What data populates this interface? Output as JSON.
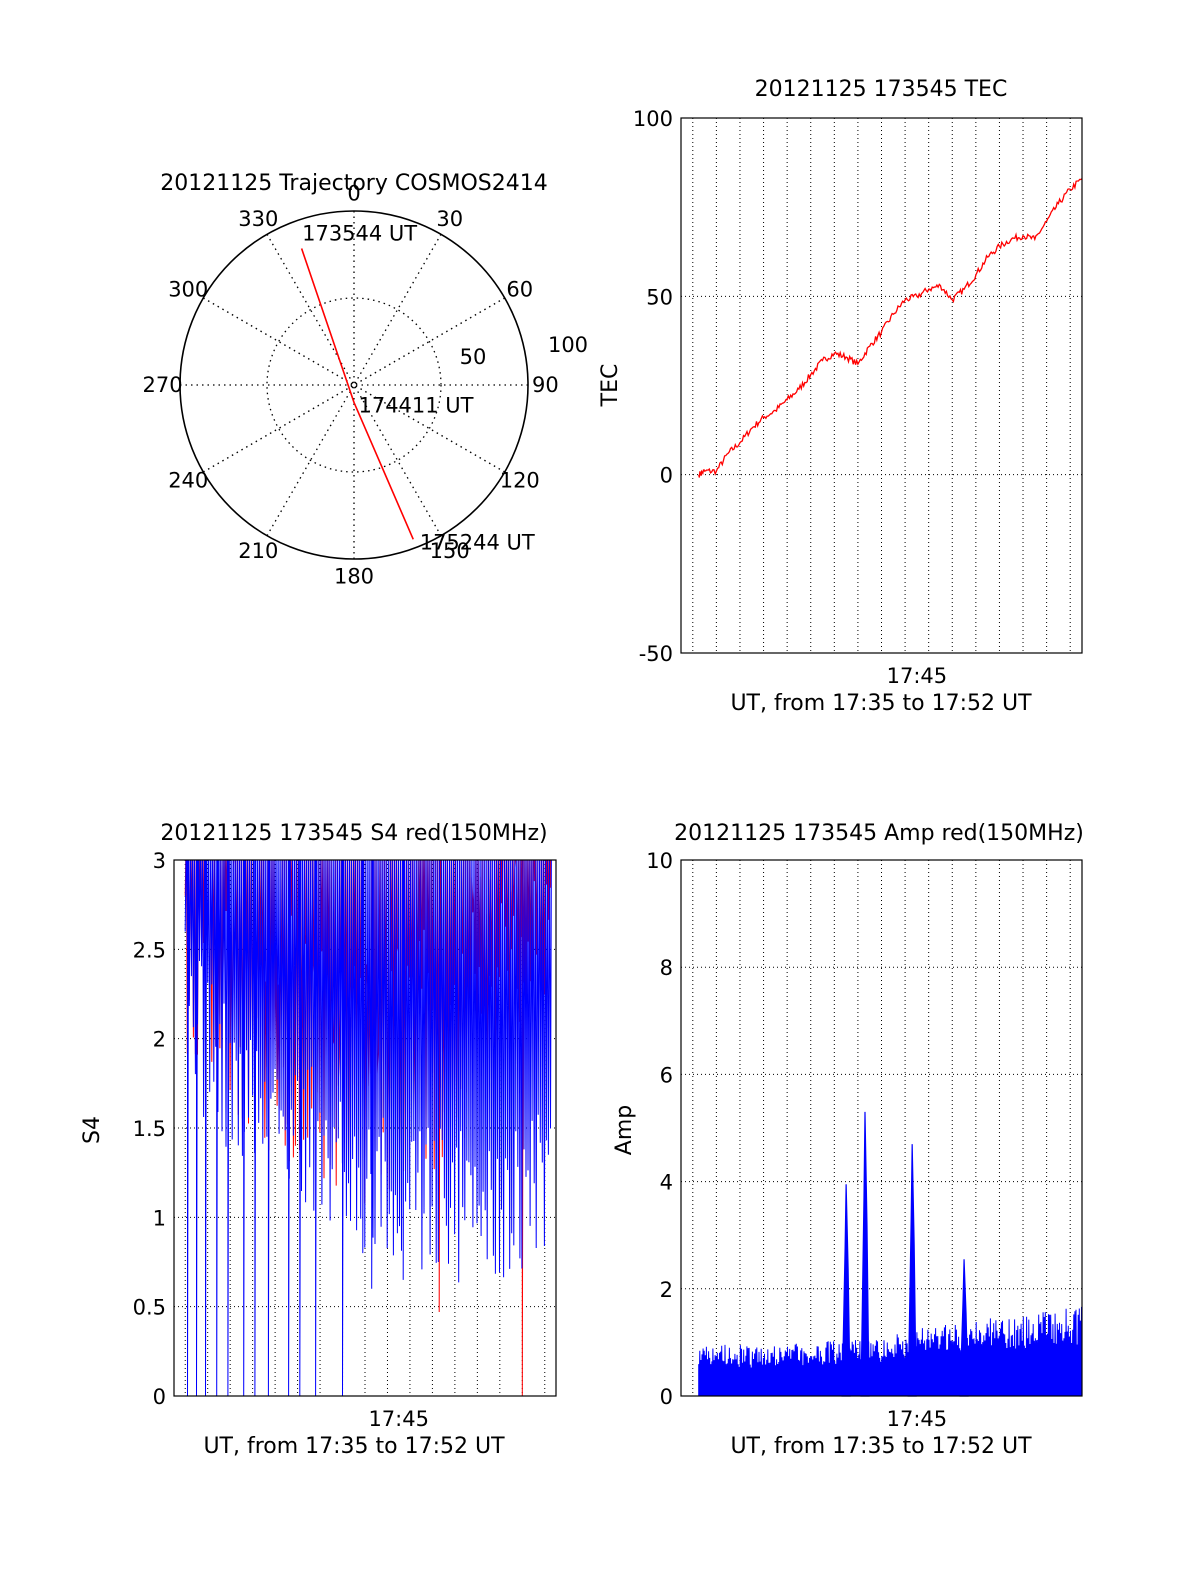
{
  "chart_data": [
    {
      "type": "polar",
      "title": "20121125 Trajectory COSMOS2414",
      "angle_labels": [
        "0",
        "30",
        "60",
        "90",
        "120",
        "150",
        "180",
        "210",
        "240",
        "270",
        "300",
        "330"
      ],
      "radial_labels": [
        "50",
        "100"
      ],
      "rlim": [
        0,
        100
      ],
      "series": [
        {
          "color": "#ff0000",
          "points": [
            {
              "az": 339,
              "r": 84
            },
            {
              "az": 180,
              "r": 10
            },
            {
              "az": 159,
              "r": 95
            }
          ]
        }
      ],
      "annotations": [
        {
          "text": "173544 UT"
        },
        {
          "text": "174411 UT"
        },
        {
          "text": "175244 UT"
        }
      ]
    },
    {
      "type": "line",
      "title": "20121125 173545 TEC",
      "ylabel": "TEC",
      "xlabel": "UT, from 17:35 to 17:52 UT",
      "x_ticks": [
        "17:45"
      ],
      "y_ticks": [
        "-50",
        "0",
        "50",
        "100"
      ],
      "xlim": [
        "17:35",
        "17:52"
      ],
      "ylim": [
        -50,
        100
      ],
      "grid": true,
      "series": [
        {
          "color": "#ff0000",
          "x": [
            "17:35:45",
            "17:36:00",
            "17:36:30",
            "17:37:00",
            "17:37:30",
            "17:38:00",
            "17:38:30",
            "17:39:00",
            "17:39:30",
            "17:40:00",
            "17:40:30",
            "17:41:00",
            "17:41:30",
            "17:42:00",
            "17:42:30",
            "17:43:00",
            "17:43:30",
            "17:44:00",
            "17:44:30",
            "17:45:00",
            "17:45:30",
            "17:46:00",
            "17:46:30",
            "17:47:00",
            "17:47:30",
            "17:48:00",
            "17:48:30",
            "17:49:00",
            "17:49:30",
            "17:50:00",
            "17:50:30",
            "17:51:00",
            "17:51:30",
            "17:52:00"
          ],
          "y": [
            0,
            1,
            1,
            6,
            9,
            13,
            16,
            18,
            21,
            24,
            28,
            32,
            34,
            33,
            31,
            36,
            40,
            45,
            49,
            50,
            52,
            53,
            49,
            52,
            56,
            61,
            64,
            66,
            67,
            66,
            71,
            76,
            80,
            83
          ]
        }
      ]
    },
    {
      "type": "line",
      "title": "20121125 173545 S4 red(150MHz)",
      "ylabel": "S4",
      "xlabel": "UT, from 17:35 to 17:52 UT",
      "x_ticks": [
        "17:45"
      ],
      "y_ticks": [
        "0",
        "0.5",
        "1",
        "1.5",
        "2",
        "2.5",
        "3"
      ],
      "xlim": [
        "17:35",
        "17:52"
      ],
      "ylim": [
        0,
        3
      ],
      "grid": true,
      "series": [
        {
          "color": "#ff0000",
          "minute": [
            35.5,
            51.8
          ],
          "envelope": [
            2.8,
            2.6,
            2.5,
            2.4,
            2.2,
            2.1,
            2.0,
            1.9,
            1.9,
            1.9,
            2.0,
            2.1,
            2.3,
            2.5,
            2.7,
            2.8,
            2.9
          ],
          "dips": [
            {
              "minute": 46.8,
              "min": 0.47
            },
            {
              "minute": 50.5,
              "min": 0.0
            }
          ]
        },
        {
          "color": "#0000ff",
          "minute": [
            35.5,
            51.8
          ],
          "envelope": [
            2.6,
            2.4,
            2.2,
            2.1,
            2.0,
            1.9,
            1.8,
            1.8,
            1.7,
            1.6,
            1.6,
            1.5,
            1.5,
            1.5,
            1.5,
            1.6,
            1.6
          ],
          "dips": [
            {
              "minute": 35.6,
              "min": 0.0
            },
            {
              "minute": 36.0,
              "min": 0.0
            },
            {
              "minute": 36.4,
              "min": 0.0
            },
            {
              "minute": 36.9,
              "min": 0.0
            },
            {
              "minute": 37.4,
              "min": 0.0
            },
            {
              "minute": 38.1,
              "min": 0.0
            },
            {
              "minute": 38.6,
              "min": 0.0
            },
            {
              "minute": 39.2,
              "min": 0.0
            },
            {
              "minute": 40.1,
              "min": 0.0
            },
            {
              "minute": 40.6,
              "min": 0.0
            },
            {
              "minute": 41.3,
              "min": 0.0
            },
            {
              "minute": 42.5,
              "min": 0.0
            },
            {
              "minute": 43.4,
              "min": 0.8
            },
            {
              "minute": 43.8,
              "min": 0.6
            },
            {
              "minute": 45.2,
              "min": 0.65
            }
          ]
        }
      ]
    },
    {
      "type": "area",
      "title": "20121125 173545 Amp red(150MHz)",
      "ylabel": "Amp",
      "xlabel": "UT, from 17:35 to 17:52 UT",
      "x_ticks": [
        "17:45"
      ],
      "y_ticks": [
        "0",
        "2",
        "4",
        "6",
        "8",
        "10"
      ],
      "xlim": [
        "17:35",
        "17:52"
      ],
      "ylim": [
        0,
        10
      ],
      "grid": true,
      "series": [
        {
          "color": "#0000ff",
          "minute": [
            35.75,
            52.0
          ],
          "baseline": [
            0.85,
            0.8,
            0.75,
            0.75,
            0.8,
            0.8,
            0.85,
            0.85,
            0.9,
            1.0,
            1.05,
            1.1,
            1.15,
            1.2,
            1.25,
            1.3,
            1.35
          ],
          "spikes": [
            {
              "minute": 42.0,
              "value": 3.95
            },
            {
              "minute": 42.8,
              "value": 5.3
            },
            {
              "minute": 44.8,
              "value": 4.7
            },
            {
              "minute": 47.0,
              "value": 2.55
            }
          ]
        }
      ]
    }
  ]
}
